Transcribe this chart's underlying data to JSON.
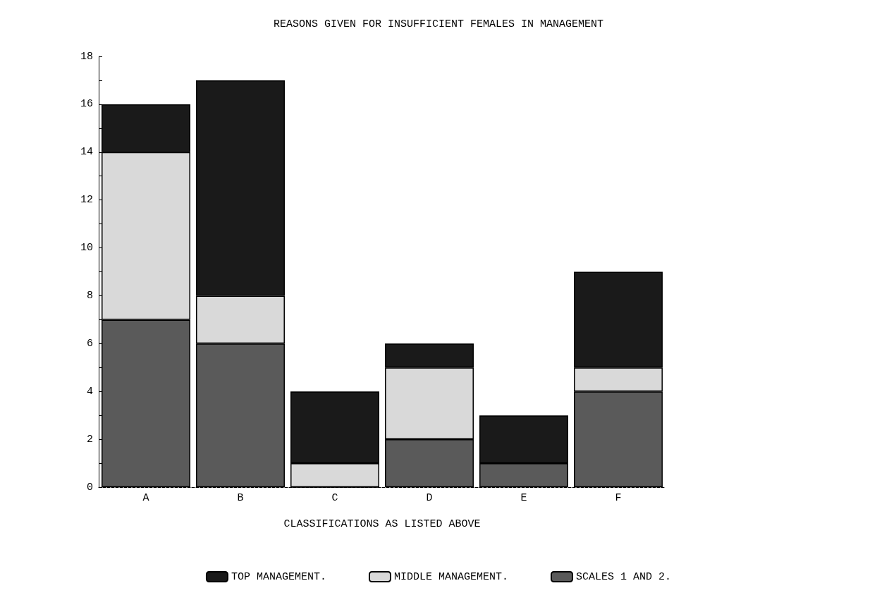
{
  "chart_data": {
    "type": "bar",
    "title": "REASONS GIVEN FOR INSUFFICIENT FEMALES IN MANAGEMENT",
    "xlabel": "CLASSIFICATIONS AS LISTED ABOVE",
    "categories": [
      "A",
      "B",
      "C",
      "D",
      "E",
      "F"
    ],
    "stacked": true,
    "series": [
      {
        "name": "SCALES 1 AND 2.",
        "color": "#5a5a5a",
        "values": [
          7,
          6,
          0,
          2,
          1,
          4
        ]
      },
      {
        "name": "MIDDLE MANAGEMENT.",
        "color": "#d9d9d9",
        "values": [
          7,
          2,
          1,
          3,
          0,
          1
        ]
      },
      {
        "name": "TOP MANAGEMENT.",
        "color": "#1a1a1a",
        "values": [
          2,
          9,
          3,
          1,
          2,
          4
        ]
      }
    ],
    "ylim": [
      0,
      18
    ],
    "yticks": [
      0,
      {
        "value": 1,
        "label": null
      },
      2,
      {
        "value": 3,
        "label": null
      },
      4,
      {
        "value": 5,
        "label": null
      },
      6,
      {
        "value": 7,
        "label": null
      },
      8,
      {
        "value": 9,
        "label": null
      },
      10,
      {
        "value": 11,
        "label": null
      },
      12,
      {
        "value": 13,
        "label": null
      },
      14,
      {
        "value": 15,
        "label": null
      },
      16,
      {
        "value": 17,
        "label": null
      },
      18
    ],
    "grid": false,
    "legend": "bottom"
  }
}
